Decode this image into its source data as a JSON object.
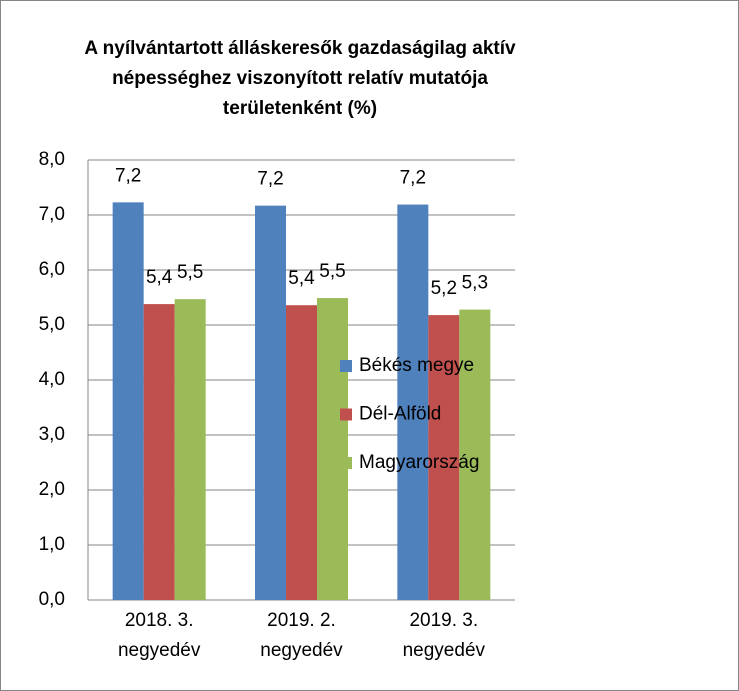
{
  "chart_data": {
    "type": "bar",
    "title": "A nyílvántartott álláskeresők gazdaságilag aktív népességhez viszonyított relatív mutatója területenként (%)",
    "categories": [
      "2018. 3. negyedév",
      "2019. 2. negyedév",
      "2019. 3. negyedév"
    ],
    "series": [
      {
        "name": "Békés megye",
        "color": "#4f81bd",
        "values": [
          7.23,
          7.17,
          7.19
        ],
        "value_labels": [
          "7,2",
          "7,2",
          "7,2"
        ]
      },
      {
        "name": "Dél-Alföld",
        "color": "#c0504d",
        "values": [
          5.38,
          5.36,
          5.18
        ],
        "value_labels": [
          "5,4",
          "5,4",
          "5,2"
        ]
      },
      {
        "name": "Magyarország",
        "color": "#9bbb59",
        "values": [
          5.47,
          5.49,
          5.28
        ],
        "value_labels": [
          "5,5",
          "5,5",
          "5,3"
        ]
      }
    ],
    "ylim": [
      0,
      8
    ],
    "yticks": [
      {
        "value": 0,
        "label": "0,0"
      },
      {
        "value": 1,
        "label": "1,0"
      },
      {
        "value": 2,
        "label": "2,0"
      },
      {
        "value": 3,
        "label": "3,0"
      },
      {
        "value": 4,
        "label": "4,0"
      },
      {
        "value": 5,
        "label": "5,0"
      },
      {
        "value": 6,
        "label": "6,0"
      },
      {
        "value": 7,
        "label": "7,0"
      },
      {
        "value": 8,
        "label": "8,0"
      }
    ],
    "grid": true,
    "legend": "right"
  }
}
